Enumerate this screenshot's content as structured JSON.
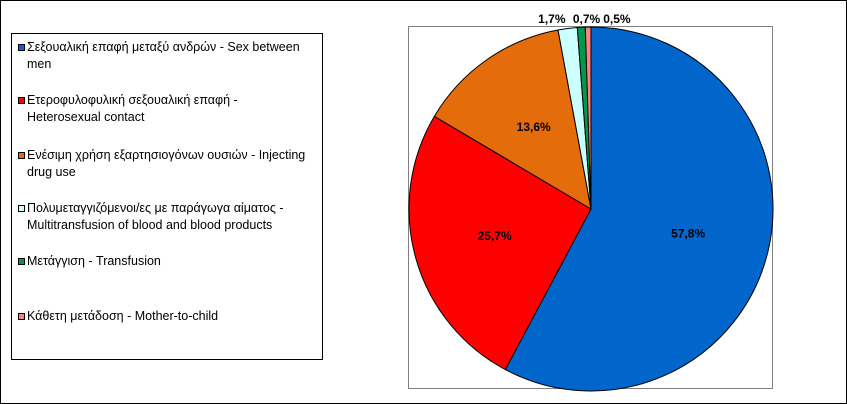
{
  "chart_data": {
    "type": "pie",
    "title": "",
    "legend_position": "left",
    "series": [
      {
        "name": "Σεξουαλική επαφή μεταξύ ανδρών - Sex between men",
        "value": 57.8,
        "label": "57,8%",
        "color": "#0066cc"
      },
      {
        "name": "Ετεροφυλοφυλική σεξουαλική επαφή - Heterosexual contact",
        "value": 25.7,
        "label": "25,7%",
        "color": "#ff0000"
      },
      {
        "name": "Ενέσιμη χρήση εξαρτησιογόνων ουσιών - Injecting drug use",
        "value": 13.6,
        "label": "13,6%",
        "color": "#e46c0a"
      },
      {
        "name": "Πολυμεταγγιζόμενοι/ες με παράγωγα αίματος - Multitransfusion of blood and blood products",
        "value": 1.7,
        "label": "1,7%",
        "color": "#ccffff"
      },
      {
        "name": "Μετάγγιση - Transfusion",
        "value": 0.7,
        "label": "0,7%",
        "color": "#00994c"
      },
      {
        "name": "Κάθετη μετάδοση - Mother-to-child",
        "value": 0.5,
        "label": "0,5%",
        "color": "#ff8080"
      }
    ]
  }
}
